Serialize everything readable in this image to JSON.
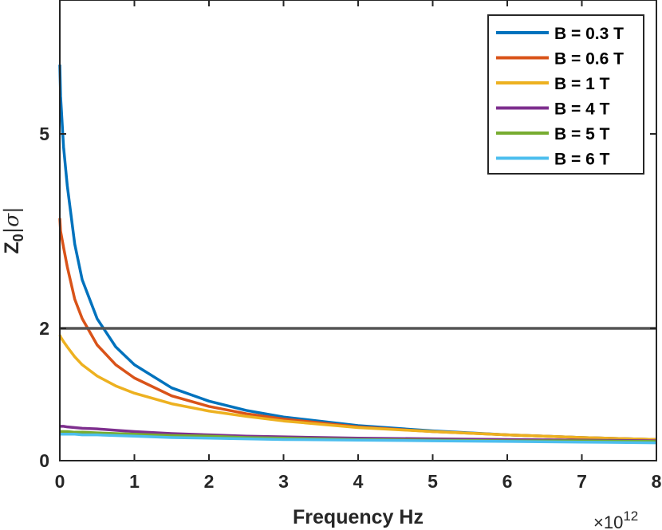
{
  "chart_data": {
    "type": "line",
    "xlabel": "Frequency Hz",
    "ylabel_main": "Z",
    "ylabel_sub": "0",
    "ylabel_rest": "|σ|",
    "x_exponent_prefix": "×10",
    "x_exponent_power": "12",
    "xlim": [
      0,
      8
    ],
    "ylim": [
      0,
      7
    ],
    "ytick_scale": "nonlinear",
    "y_ticks": [
      {
        "value": 0,
        "label": "0"
      },
      {
        "value": 2,
        "label": "2"
      },
      {
        "value": 5,
        "label": "5"
      }
    ],
    "x_ticks": [
      {
        "value": 0,
        "label": "0"
      },
      {
        "value": 1,
        "label": "1"
      },
      {
        "value": 2,
        "label": "2"
      },
      {
        "value": 3,
        "label": "3"
      },
      {
        "value": 4,
        "label": "4"
      },
      {
        "value": 5,
        "label": "5"
      },
      {
        "value": 6,
        "label": "6"
      },
      {
        "value": 7,
        "label": "7"
      },
      {
        "value": 8,
        "label": "8"
      }
    ],
    "reference_line": {
      "y": 2,
      "color": "#555555"
    },
    "legend_position": "top-right",
    "grid": false,
    "x": [
      0,
      0.01,
      0.05,
      0.1,
      0.2,
      0.3,
      0.5,
      0.75,
      1,
      1.5,
      2,
      2.5,
      3,
      4,
      5,
      6,
      7,
      8
    ],
    "series": [
      {
        "name": "B = 0.3 T",
        "color": "#0072BD",
        "values": [
          6.1,
          5.6,
          4.8,
          4.2,
          3.3,
          2.75,
          2.15,
          1.72,
          1.45,
          1.1,
          0.9,
          0.76,
          0.66,
          0.53,
          0.45,
          0.39,
          0.35,
          0.32
        ]
      },
      {
        "name": "B = 0.6 T",
        "color": "#D95319",
        "values": [
          3.7,
          3.5,
          3.25,
          2.95,
          2.45,
          2.15,
          1.75,
          1.45,
          1.25,
          0.98,
          0.82,
          0.71,
          0.63,
          0.51,
          0.44,
          0.39,
          0.35,
          0.32
        ]
      },
      {
        "name": "B = 1 T",
        "color": "#EDB120",
        "values": [
          1.9,
          1.87,
          1.8,
          1.72,
          1.57,
          1.45,
          1.28,
          1.13,
          1.02,
          0.86,
          0.75,
          0.67,
          0.6,
          0.5,
          0.44,
          0.39,
          0.35,
          0.32
        ]
      },
      {
        "name": "B = 4 T",
        "color": "#7E2F8E",
        "values": [
          0.52,
          0.52,
          0.52,
          0.51,
          0.5,
          0.49,
          0.48,
          0.46,
          0.44,
          0.41,
          0.39,
          0.37,
          0.36,
          0.34,
          0.33,
          0.32,
          0.31,
          0.3
        ]
      },
      {
        "name": "B = 5 T",
        "color": "#77AC30",
        "values": [
          0.44,
          0.44,
          0.44,
          0.44,
          0.43,
          0.43,
          0.42,
          0.41,
          0.4,
          0.38,
          0.37,
          0.35,
          0.34,
          0.32,
          0.31,
          0.3,
          0.3,
          0.29
        ]
      },
      {
        "name": "B = 6 T",
        "color": "#4DBEEE",
        "values": [
          0.4,
          0.4,
          0.4,
          0.4,
          0.4,
          0.39,
          0.39,
          0.38,
          0.37,
          0.35,
          0.34,
          0.33,
          0.32,
          0.31,
          0.3,
          0.29,
          0.28,
          0.27
        ]
      }
    ]
  }
}
